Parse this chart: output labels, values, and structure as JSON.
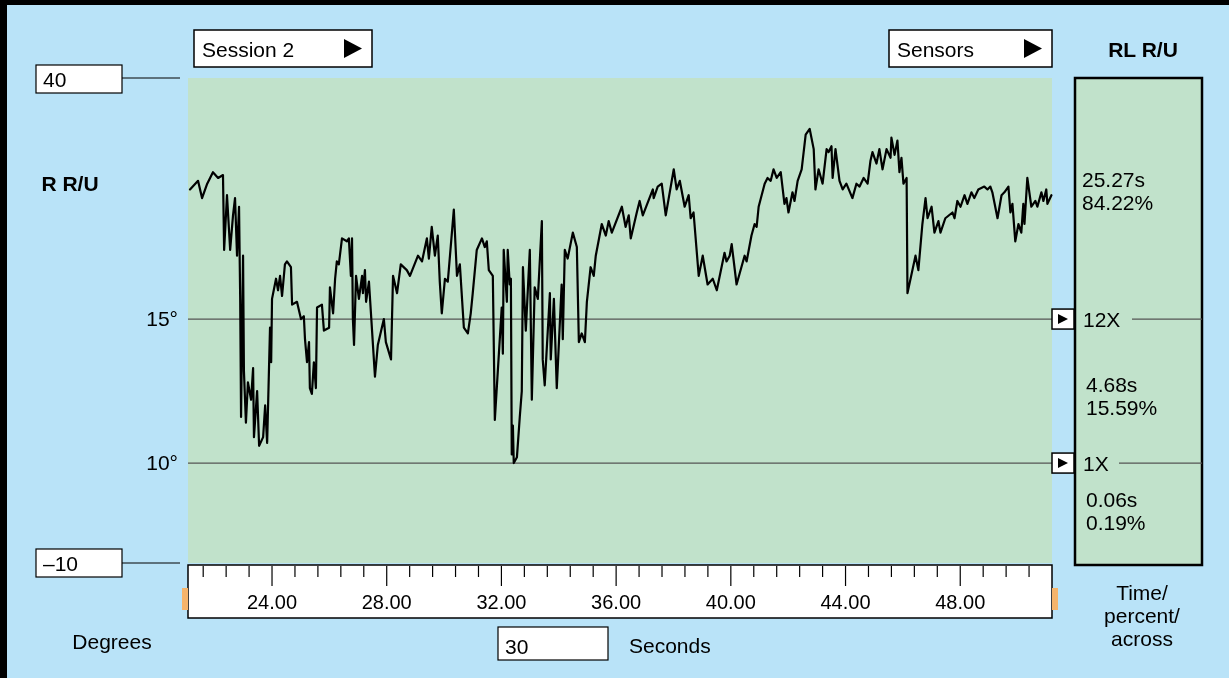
{
  "chart_data": {
    "type": "line",
    "xlabel": "Seconds",
    "ylabel": "R R/U",
    "annotations": [
      "Session 2",
      "Sensors",
      "40",
      "–10",
      "Degrees",
      "30",
      "RL R/U",
      "25.27s\n84.22%",
      "4.68s\n15.59%",
      "0.06s\n0.19%",
      "Time/\npercent/\nacross"
    ],
    "xlim": [
      21.07,
      51.2
    ],
    "ylim": [
      6.53,
      23.37
    ],
    "xticks": [
      {
        "value": 21.6,
        "label": null
      },
      {
        "value": 22.4,
        "label": null
      },
      {
        "value": 23.2,
        "label": null
      },
      {
        "value": 24,
        "label": "24.00"
      },
      {
        "value": 24.8,
        "label": null
      },
      {
        "value": 25.6,
        "label": null
      },
      {
        "value": 26.4,
        "label": null
      },
      {
        "value": 27.2,
        "label": null
      },
      {
        "value": 28,
        "label": "28.00"
      },
      {
        "value": 28.8,
        "label": null
      },
      {
        "value": 29.6,
        "label": null
      },
      {
        "value": 30.4,
        "label": null
      },
      {
        "value": 31.2,
        "label": null
      },
      {
        "value": 32,
        "label": "32.00"
      },
      {
        "value": 32.8,
        "label": null
      },
      {
        "value": 33.6,
        "label": null
      },
      {
        "value": 34.4,
        "label": null
      },
      {
        "value": 35.2,
        "label": null
      },
      {
        "value": 36,
        "label": "36.00"
      },
      {
        "value": 36.8,
        "label": null
      },
      {
        "value": 37.6,
        "label": null
      },
      {
        "value": 38.4,
        "label": null
      },
      {
        "value": 39.2,
        "label": null
      },
      {
        "value": 40,
        "label": "40.00"
      },
      {
        "value": 40.8,
        "label": null
      },
      {
        "value": 41.6,
        "label": null
      },
      {
        "value": 42.4,
        "label": null
      },
      {
        "value": 43.2,
        "label": null
      },
      {
        "value": 44,
        "label": "44.00"
      },
      {
        "value": 44.8,
        "label": null
      },
      {
        "value": 45.6,
        "label": null
      },
      {
        "value": 46.4,
        "label": null
      },
      {
        "value": 47.2,
        "label": null
      },
      {
        "value": 48,
        "label": "48.00"
      },
      {
        "value": 48.8,
        "label": null
      },
      {
        "value": 49.6,
        "label": null
      },
      {
        "value": 50.4,
        "label": null
      }
    ],
    "yticks": [
      {
        "value": 15,
        "label": "15°"
      },
      {
        "value": 10,
        "label": "10°"
      }
    ],
    "ref_lines": [
      {
        "axis": "y",
        "value": 15,
        "label": "12X",
        "color": "#555555"
      },
      {
        "axis": "y",
        "value": 10,
        "label": "1X",
        "color": "#555555"
      }
    ],
    "x": [
      21.14,
      21.42,
      21.56,
      21.74,
      21.94,
      22.12,
      22.29,
      22.33,
      22.43,
      22.54,
      22.64,
      22.71,
      22.78,
      22.85,
      22.89,
      22.92,
      22.99,
      23.02,
      23.09,
      23.16,
      23.27,
      23.34,
      23.37,
      23.48,
      23.55,
      23.69,
      23.76,
      23.83,
      23.93,
      23.97,
      24.0,
      24.14,
      24.21,
      24.28,
      24.35,
      24.45,
      24.52,
      24.66,
      24.7,
      24.87,
      25.01,
      25.11,
      25.15,
      25.22,
      25.29,
      25.32,
      25.39,
      25.46,
      25.53,
      25.57,
      25.74,
      25.81,
      25.99,
      26.02,
      26.13,
      26.2,
      26.26,
      26.33,
      26.44,
      26.61,
      26.68,
      26.75,
      26.79,
      26.82,
      26.86,
      26.93,
      27.03,
      27.14,
      27.17,
      27.24,
      27.28,
      27.38,
      27.59,
      27.69,
      27.9,
      27.97,
      28.15,
      28.22,
      28.36,
      28.49,
      28.7,
      28.81,
      29.09,
      29.23,
      29.4,
      29.47,
      29.57,
      29.68,
      29.78,
      29.85,
      29.92,
      30.03,
      30.13,
      30.34,
      30.45,
      30.55,
      30.69,
      30.83,
      30.93,
      31.0,
      31.14,
      31.32,
      31.42,
      31.49,
      31.56,
      31.7,
      31.77,
      32.01,
      32.05,
      32.08,
      32.19,
      32.22,
      32.29,
      32.33,
      32.36,
      32.4,
      32.43,
      32.54,
      32.64,
      32.71,
      32.75,
      32.85,
      32.99,
      33.06,
      33.16,
      33.27,
      33.41,
      33.44,
      33.51,
      33.69,
      33.72,
      33.83,
      33.93,
      34.1,
      34.14,
      34.21,
      34.31,
      34.49,
      34.63,
      34.7,
      34.8,
      34.91,
      34.98,
      35.11,
      35.22,
      35.29,
      35.5,
      35.64,
      35.74,
      35.85,
      36.2,
      36.33,
      36.44,
      36.51,
      36.72,
      36.82,
      36.93,
      37.28,
      37.31,
      37.45,
      37.59,
      37.73,
      38.01,
      38.11,
      38.22,
      38.39,
      38.53,
      38.6,
      38.7,
      38.88,
      39.02,
      39.19,
      39.37,
      39.51,
      39.78,
      39.85,
      39.96,
      40.03,
      40.2,
      40.48,
      40.55,
      40.72,
      40.83,
      40.9,
      40.97,
      41.18,
      41.28,
      41.39,
      41.49,
      41.6,
      41.74,
      41.87,
      41.94,
      42.01,
      42.15,
      42.22,
      42.33,
      42.47,
      42.61,
      42.75,
      42.89,
      42.95,
      43.06,
      43.2,
      43.34,
      43.41,
      43.51,
      43.55,
      43.65,
      43.79,
      43.9,
      44.03,
      44.24,
      44.38,
      44.49,
      44.63,
      44.77,
      44.87,
      44.94,
      45.08,
      45.18,
      45.29,
      45.43,
      45.57,
      45.6,
      45.71,
      45.81,
      45.88,
      45.95,
      46.02,
      46.13,
      46.16,
      46.44,
      46.54,
      46.68,
      46.79,
      46.86,
      47.0,
      47.1,
      47.24,
      47.31,
      47.48,
      47.73,
      47.8,
      47.9,
      48.01,
      48.15,
      48.25,
      48.39,
      48.49,
      48.63,
      48.84,
      48.95,
      49.05,
      49.12,
      49.3,
      49.44,
      49.54,
      49.68,
      49.75,
      49.82,
      49.92,
      50.03,
      50.13,
      50.2,
      50.24,
      50.34,
      50.48,
      50.62,
      50.69,
      50.83,
      50.9,
      51.0,
      51.04,
      51.18
    ],
    "series": [
      {
        "color": "#000000",
        "values": [
          19.5,
          19.8,
          19.2,
          19.7,
          20.1,
          19.9,
          20.0,
          17.4,
          19.3,
          17.4,
          18.6,
          19.2,
          17.2,
          18.9,
          15.7,
          11.6,
          17.2,
          13.2,
          11.4,
          12.8,
          12.2,
          13.3,
          10.9,
          12.5,
          10.6,
          10.9,
          12.0,
          10.7,
          14.7,
          13.5,
          15.7,
          16.4,
          16.0,
          16.5,
          15.8,
          16.9,
          17.0,
          16.8,
          15.5,
          15.6,
          15.0,
          15.1,
          14.3,
          13.5,
          14.2,
          12.6,
          12.4,
          13.5,
          12.6,
          15.4,
          15.5,
          14.6,
          14.7,
          16.1,
          15.2,
          16.4,
          17.0,
          16.9,
          17.8,
          17.7,
          17.8,
          16.5,
          17.8,
          15.0,
          14.1,
          16.5,
          15.7,
          16.5,
          15.9,
          16.7,
          15.6,
          16.3,
          13.0,
          14.1,
          15.0,
          14.2,
          13.6,
          16.5,
          15.9,
          16.9,
          16.7,
          16.5,
          17.2,
          17.0,
          17.8,
          17.1,
          18.2,
          17.2,
          17.9,
          16.3,
          15.2,
          16.4,
          16.3,
          18.8,
          16.5,
          16.9,
          14.7,
          14.5,
          15.2,
          15.9,
          17.4,
          17.8,
          17.5,
          17.7,
          16.7,
          16.5,
          11.5,
          15.4,
          13.8,
          17.4,
          15.6,
          17.4,
          16.2,
          16.4,
          10.3,
          11.3,
          10.0,
          10.2,
          11.6,
          12.5,
          16.8,
          14.6,
          17.4,
          12.2,
          16.1,
          15.7,
          18.4,
          13.6,
          12.7,
          15.9,
          13.6,
          15.7,
          12.6,
          16.2,
          14.3,
          17.4,
          17.1,
          18.0,
          17.5,
          14.2,
          14.5,
          14.2,
          15.6,
          16.8,
          16.5,
          17.2,
          18.3,
          17.9,
          18.4,
          18.0,
          18.9,
          18.2,
          18.6,
          17.8,
          18.7,
          19.1,
          18.6,
          19.5,
          19.2,
          19.6,
          19.7,
          18.6,
          20.2,
          19.5,
          19.8,
          18.9,
          19.3,
          18.5,
          18.7,
          16.5,
          17.2,
          16.2,
          16.4,
          16.0,
          17.3,
          17.0,
          17.2,
          17.6,
          16.2,
          17.2,
          17.0,
          17.9,
          18.3,
          18.2,
          18.9,
          19.7,
          19.9,
          19.8,
          20.2,
          19.9,
          20.1,
          19.0,
          19.2,
          18.7,
          19.4,
          19.1,
          19.8,
          20.2,
          21.4,
          21.6,
          20.9,
          19.5,
          20.2,
          19.7,
          20.9,
          20.8,
          21.0,
          19.9,
          20.9,
          19.8,
          19.5,
          19.7,
          19.2,
          19.7,
          19.6,
          19.9,
          19.7,
          20.5,
          20.8,
          20.4,
          20.9,
          20.2,
          20.9,
          20.6,
          21.3,
          20.7,
          21.2,
          20.1,
          20.6,
          19.7,
          19.9,
          15.9,
          17.2,
          16.7,
          18.3,
          19.2,
          18.5,
          18.9,
          18.0,
          18.4,
          18.0,
          18.5,
          18.7,
          18.5,
          19.1,
          18.9,
          19.3,
          19.0,
          19.4,
          19.2,
          19.5,
          19.6,
          19.5,
          19.6,
          19.4,
          18.5,
          19.3,
          19.4,
          19.6,
          18.7,
          19.0,
          17.7,
          18.3,
          18.0,
          19.0,
          18.3,
          19.9,
          18.9,
          19.1,
          18.9,
          19.4,
          19.1,
          19.5,
          19.0,
          19.3
        ]
      }
    ]
  }
}
